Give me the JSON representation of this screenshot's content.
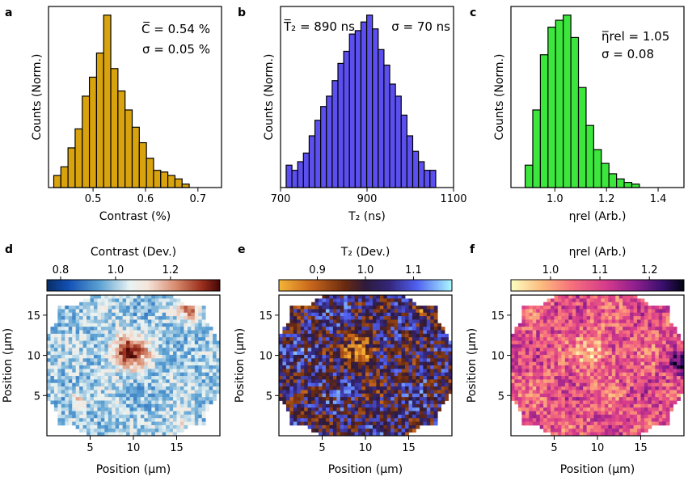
{
  "panels": [
    {
      "id": "a",
      "label": "a"
    },
    {
      "id": "b",
      "label": "b"
    },
    {
      "id": "c",
      "label": "c"
    },
    {
      "id": "d",
      "label": "d"
    },
    {
      "id": "e",
      "label": "e"
    },
    {
      "id": "f",
      "label": "f"
    }
  ],
  "colors": {
    "contrast_hist": "#d9a30e",
    "t2_hist": "#5b4ff0",
    "eta_hist": "#3ce63c",
    "annot_contrast": "#d9a30e",
    "annot_t2": "#5b4ff0",
    "annot_eta": "#3ce63c"
  },
  "chart_data": [
    {
      "panel": "a",
      "type": "bar",
      "title": "",
      "xlabel": "Contrast (%)",
      "ylabel": "Counts (Norm.)",
      "xlim": [
        0.415,
        0.745
      ],
      "ylim": [
        0,
        1.05
      ],
      "xticks": [
        "0.5",
        "0.6",
        "0.7"
      ],
      "xtick_values": [
        0.5,
        0.6,
        0.7
      ],
      "bin_start": 0.425,
      "bin_width": 0.0136,
      "values": [
        0.07,
        0.12,
        0.23,
        0.34,
        0.53,
        0.64,
        0.78,
        1.0,
        0.69,
        0.56,
        0.45,
        0.35,
        0.26,
        0.17,
        0.1,
        0.09,
        0.07,
        0.05,
        0.02
      ],
      "annotations": [
        "C̅ = 0.54 %",
        "σ = 0.05 %"
      ]
    },
    {
      "panel": "b",
      "type": "bar",
      "title": "",
      "xlabel": "T₂ (ns)",
      "ylabel": "Counts (Norm.)",
      "xlim": [
        700,
        1100
      ],
      "ylim": [
        0,
        1.05
      ],
      "xticks": [
        "700",
        "900",
        "1100"
      ],
      "xtick_values": [
        700,
        900,
        1100
      ],
      "bin_start": 713,
      "bin_width": 13.3,
      "values": [
        0.13,
        0.1,
        0.15,
        0.2,
        0.3,
        0.39,
        0.47,
        0.53,
        0.62,
        0.72,
        0.79,
        0.89,
        0.91,
        0.96,
        1.0,
        0.92,
        0.8,
        0.71,
        0.6,
        0.53,
        0.42,
        0.3,
        0.21,
        0.15,
        0.1,
        0.1
      ],
      "annotations": [
        "T̅₂ = 890 ns",
        "σ = 70 ns"
      ]
    },
    {
      "panel": "c",
      "type": "bar",
      "title": "",
      "xlabel": "ηrel (Arb.)",
      "ylabel": "Counts (Norm.)",
      "xlim": [
        0.83,
        1.5
      ],
      "ylim": [
        0,
        1.05
      ],
      "xticks": [
        "1.0",
        "1.2",
        "1.4"
      ],
      "xtick_values": [
        1.0,
        1.2,
        1.4
      ],
      "bin_start": 0.885,
      "bin_width": 0.0295,
      "values": [
        0.13,
        0.45,
        0.77,
        0.93,
        0.97,
        1.0,
        0.87,
        0.58,
        0.36,
        0.22,
        0.14,
        0.08,
        0.05,
        0.03,
        0.02
      ],
      "annotations": [
        "η̅rel = 1.05",
        "σ = 0.08"
      ]
    },
    {
      "panel": "d",
      "type": "heatmap",
      "colorbar_label": "Contrast (Dev.)",
      "colorbar_range": [
        0.75,
        1.38
      ],
      "colorbar_ticks": [
        "0.8",
        "1.0",
        "1.2"
      ],
      "colorbar_tick_values": [
        0.8,
        1.0,
        1.2
      ],
      "colormap": "RdBu_r-like (blue → white → dark red)",
      "xlabel": "Position (μm)",
      "ylabel": "Position (μm)",
      "xlim": [
        0,
        20
      ],
      "ylim": [
        0,
        17.5
      ],
      "xticks": [
        "5",
        "10",
        "15"
      ],
      "yticks": [
        "5",
        "10",
        "15"
      ],
      "features": [
        {
          "x": 9.5,
          "y": 10.5,
          "radius": 2.2,
          "value": 1.34,
          "desc": "dark red blob"
        },
        {
          "x": 16.5,
          "y": 15.7,
          "radius": 1.3,
          "value": 1.22,
          "desc": "red patch top-right"
        },
        {
          "x": 3.5,
          "y": 4.5,
          "radius": 1.0,
          "value": 1.12,
          "desc": "light red spot"
        },
        {
          "x": 15.5,
          "y": 1.5,
          "radius": 1.5,
          "value": 1.12,
          "desc": "reddish bottom-right"
        }
      ]
    },
    {
      "panel": "e",
      "type": "heatmap",
      "colorbar_label": "T₂ (Dev.)",
      "colorbar_range": [
        0.82,
        1.18
      ],
      "colorbar_ticks": [
        "0.9",
        "1.0",
        "1.1"
      ],
      "colorbar_tick_values": [
        0.9,
        1.0,
        1.1
      ],
      "colormap": "orange → dark brown → blue → cyan",
      "xlabel": "Position (μm)",
      "ylabel": "Position (μm)",
      "xlim": [
        0,
        20
      ],
      "ylim": [
        0,
        17.5
      ],
      "xticks": [
        "5",
        "10",
        "15"
      ],
      "yticks": [
        "5",
        "10",
        "15"
      ],
      "features": [
        {
          "x": 9.5,
          "y": 10.5,
          "radius": 2.2,
          "value": 0.85,
          "desc": "orange blob"
        },
        {
          "x": 16.5,
          "y": 15.7,
          "radius": 1.3,
          "value": 0.88,
          "desc": "orange patch top-right"
        }
      ]
    },
    {
      "panel": "f",
      "type": "heatmap",
      "colorbar_label": "ηrel (Arb.)",
      "colorbar_range": [
        0.92,
        1.27
      ],
      "colorbar_ticks": [
        "1.0",
        "1.1",
        "1.2"
      ],
      "colorbar_tick_values": [
        1.0,
        1.1,
        1.2
      ],
      "colormap": "magma_r-like (light yellow → pink → purple → black)",
      "xlabel": "Position (μm)",
      "ylabel": "Position (μm)",
      "xlim": [
        0,
        20
      ],
      "ylim": [
        0,
        17.5
      ],
      "xticks": [
        "5",
        "10",
        "15"
      ],
      "yticks": [
        "5",
        "10",
        "15"
      ],
      "features": [
        {
          "x": 9.5,
          "y": 10.5,
          "radius": 2.2,
          "value": 0.97,
          "desc": "light yellow blob"
        },
        {
          "x": 19.5,
          "y": 9,
          "radius": 1.5,
          "value": 1.24,
          "desc": "dark right edge"
        }
      ]
    }
  ]
}
